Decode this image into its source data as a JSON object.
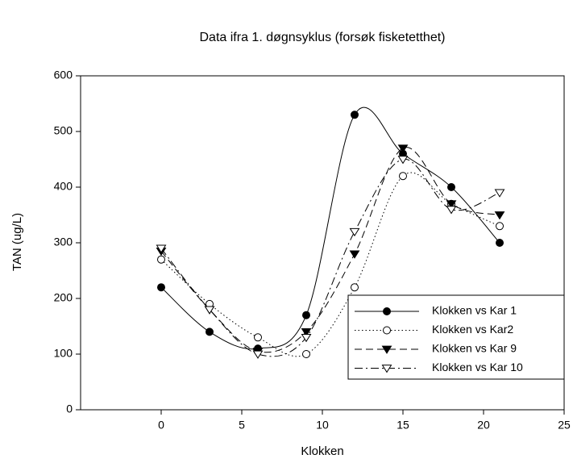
{
  "chart_data": {
    "type": "line",
    "title": "Data ifra 1. døgnsyklus (forsøk fisketetthet)",
    "x_label": "Klokken",
    "y_label": "TAN (ug/L)",
    "x": [
      0,
      3,
      6,
      9,
      12,
      15,
      18,
      21
    ],
    "xlim": [
      -5,
      25
    ],
    "xticks": [
      0,
      5,
      10,
      15,
      20,
      25
    ],
    "ylim": [
      0,
      600
    ],
    "yticks": [
      0,
      100,
      200,
      300,
      400,
      500,
      600
    ],
    "smooth": true,
    "legend": "lower right",
    "series": [
      {
        "name": "Klokken vs Kar 1",
        "color": "#000000",
        "marker": "circle",
        "filled": true,
        "dash": "solid",
        "values": [
          220,
          140,
          110,
          170,
          530,
          460,
          400,
          300
        ]
      },
      {
        "name": "Klokken vs Kar2",
        "color": "#000000",
        "marker": "circle",
        "filled": false,
        "dash": "dotted",
        "values": [
          270,
          190,
          130,
          100,
          220,
          420,
          370,
          330
        ]
      },
      {
        "name": "Klokken vs Kar 9",
        "color": "#000000",
        "marker": "triangle-down",
        "filled": true,
        "dash": "dashed",
        "values": [
          285,
          180,
          105,
          140,
          280,
          470,
          370,
          350
        ]
      },
      {
        "name": "Klokken vs Kar 10",
        "color": "#000000",
        "marker": "triangle-down",
        "filled": false,
        "dash": "dashdot",
        "values": [
          290,
          180,
          100,
          130,
          320,
          450,
          360,
          390
        ]
      }
    ]
  }
}
